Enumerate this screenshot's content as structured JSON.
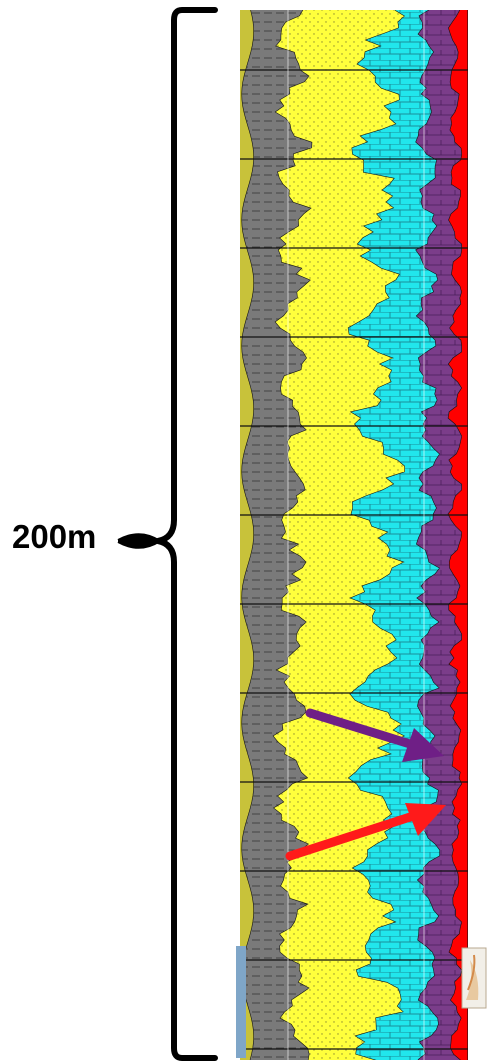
{
  "scale": {
    "label": "200m"
  },
  "colors": {
    "shale": "#7a7a7a",
    "sandstone": "#ffff3c",
    "limestone": "#21e6ec",
    "dolomite": "#7b3d8a",
    "anhydrite": "#ff0000",
    "siltstone": "#c8c23a",
    "background": "#ffffff"
  },
  "annotations": [
    {
      "name": "purple-arrow",
      "color": "#6f1f86"
    },
    {
      "name": "red-arrow",
      "color": "#ff1a1a"
    }
  ]
}
